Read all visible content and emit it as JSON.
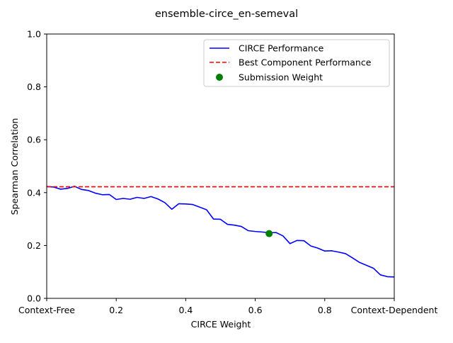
{
  "chart_data": {
    "type": "line",
    "title": "ensemble-circe_en-semeval",
    "xlabel": "CIRCE Weight",
    "ylabel": "Spearman Correlation",
    "xlim": [
      0,
      1
    ],
    "ylim": [
      0,
      1
    ],
    "grid": false,
    "legend_placement": "upper-right",
    "x_ticks": [
      {
        "value": 0.0,
        "label": "Context-Free"
      },
      {
        "value": 0.2,
        "label": "0.2"
      },
      {
        "value": 0.4,
        "label": "0.4"
      },
      {
        "value": 0.6,
        "label": "0.6"
      },
      {
        "value": 0.8,
        "label": "0.8"
      },
      {
        "value": 1.0,
        "label": "Context-Dependent"
      }
    ],
    "y_ticks": [
      {
        "value": 0.0,
        "label": "0.0"
      },
      {
        "value": 0.2,
        "label": "0.2"
      },
      {
        "value": 0.4,
        "label": "0.4"
      },
      {
        "value": 0.6,
        "label": "0.6"
      },
      {
        "value": 0.8,
        "label": "0.8"
      },
      {
        "value": 1.0,
        "label": "1.0"
      }
    ],
    "series": [
      {
        "name": "CIRCE Performance",
        "kind": "line",
        "color": "#0000ff",
        "x": [
          0.0,
          0.02,
          0.04,
          0.06,
          0.08,
          0.1,
          0.12,
          0.14,
          0.16,
          0.18,
          0.2,
          0.22,
          0.24,
          0.26,
          0.28,
          0.3,
          0.32,
          0.34,
          0.36,
          0.38,
          0.4,
          0.42,
          0.44,
          0.46,
          0.48,
          0.5,
          0.52,
          0.54,
          0.56,
          0.58,
          0.6,
          0.62,
          0.64,
          0.66,
          0.68,
          0.7,
          0.72,
          0.74,
          0.76,
          0.78,
          0.8,
          0.82,
          0.84,
          0.86,
          0.88,
          0.9,
          0.92,
          0.94,
          0.96,
          0.98,
          1.0
        ],
        "y": [
          0.423,
          0.421,
          0.413,
          0.416,
          0.424,
          0.412,
          0.408,
          0.398,
          0.392,
          0.393,
          0.374,
          0.378,
          0.375,
          0.382,
          0.378,
          0.385,
          0.376,
          0.362,
          0.337,
          0.358,
          0.357,
          0.355,
          0.345,
          0.335,
          0.3,
          0.299,
          0.28,
          0.277,
          0.272,
          0.256,
          0.253,
          0.251,
          0.248,
          0.249,
          0.236,
          0.207,
          0.219,
          0.218,
          0.198,
          0.19,
          0.179,
          0.18,
          0.175,
          0.169,
          0.153,
          0.136,
          0.125,
          0.114,
          0.089,
          0.082,
          0.081
        ]
      },
      {
        "name": "Best Component Performance",
        "kind": "hline",
        "color": "#ff0000",
        "dash": true,
        "value": 0.422
      },
      {
        "name": "Submission Weight",
        "kind": "scatter",
        "color": "#008000",
        "x": [
          0.64
        ],
        "y": [
          0.245
        ]
      }
    ]
  }
}
